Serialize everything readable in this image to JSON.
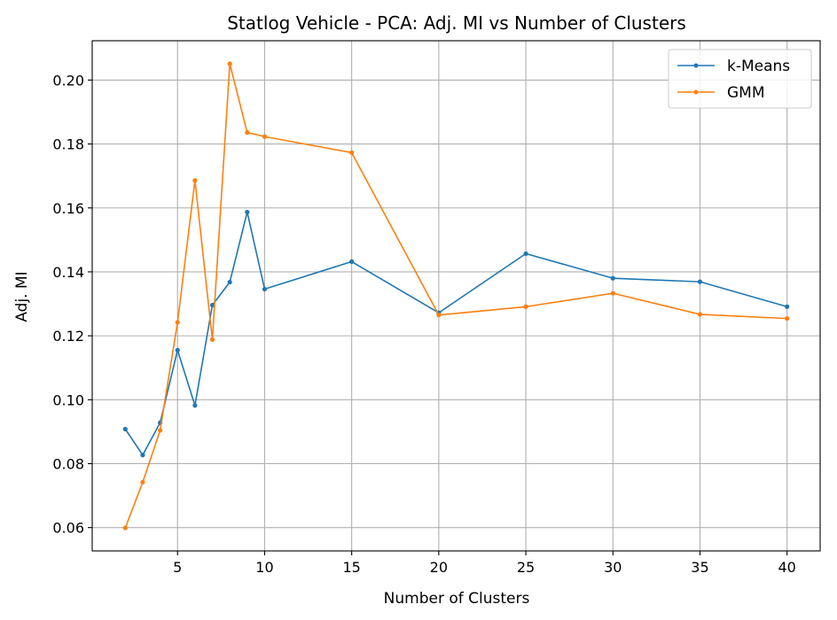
{
  "chart_data": {
    "type": "line",
    "title": "Statlog Vehicle - PCA: Adj. MI vs Number of Clusters",
    "xlabel": "Number of Clusters",
    "ylabel": "Adj. MI",
    "xlim": [
      0.1,
      41.9
    ],
    "ylim": [
      0.0527,
      0.2123
    ],
    "xticks": [
      5,
      10,
      15,
      20,
      25,
      30,
      35,
      40
    ],
    "xtick_labels": [
      "5",
      "10",
      "15",
      "20",
      "25",
      "30",
      "35",
      "40"
    ],
    "yticks": [
      0.06,
      0.08,
      0.1,
      0.12,
      0.14,
      0.16,
      0.18,
      0.2
    ],
    "ytick_labels": [
      "0.06",
      "0.08",
      "0.10",
      "0.12",
      "0.14",
      "0.16",
      "0.18",
      "0.20"
    ],
    "grid": true,
    "legend_position": "top-right",
    "x": [
      2,
      3,
      4,
      5,
      6,
      7,
      8,
      9,
      10,
      15,
      20,
      25,
      30,
      35,
      40
    ],
    "series": [
      {
        "name": "k-Means",
        "color": "#1f77b4",
        "values": [
          0.0908,
          0.0827,
          0.0928,
          0.1155,
          0.0982,
          0.1296,
          0.1368,
          0.1587,
          0.1346,
          0.1432,
          0.1272,
          0.1457,
          0.138,
          0.1369,
          0.1291
        ]
      },
      {
        "name": "GMM",
        "color": "#ff7f0e",
        "values": [
          0.0599,
          0.0742,
          0.0904,
          0.1242,
          0.1686,
          0.1188,
          0.2051,
          0.1836,
          0.1823,
          0.1773,
          0.1265,
          0.1291,
          0.1333,
          0.1267,
          0.1254
        ]
      }
    ]
  }
}
